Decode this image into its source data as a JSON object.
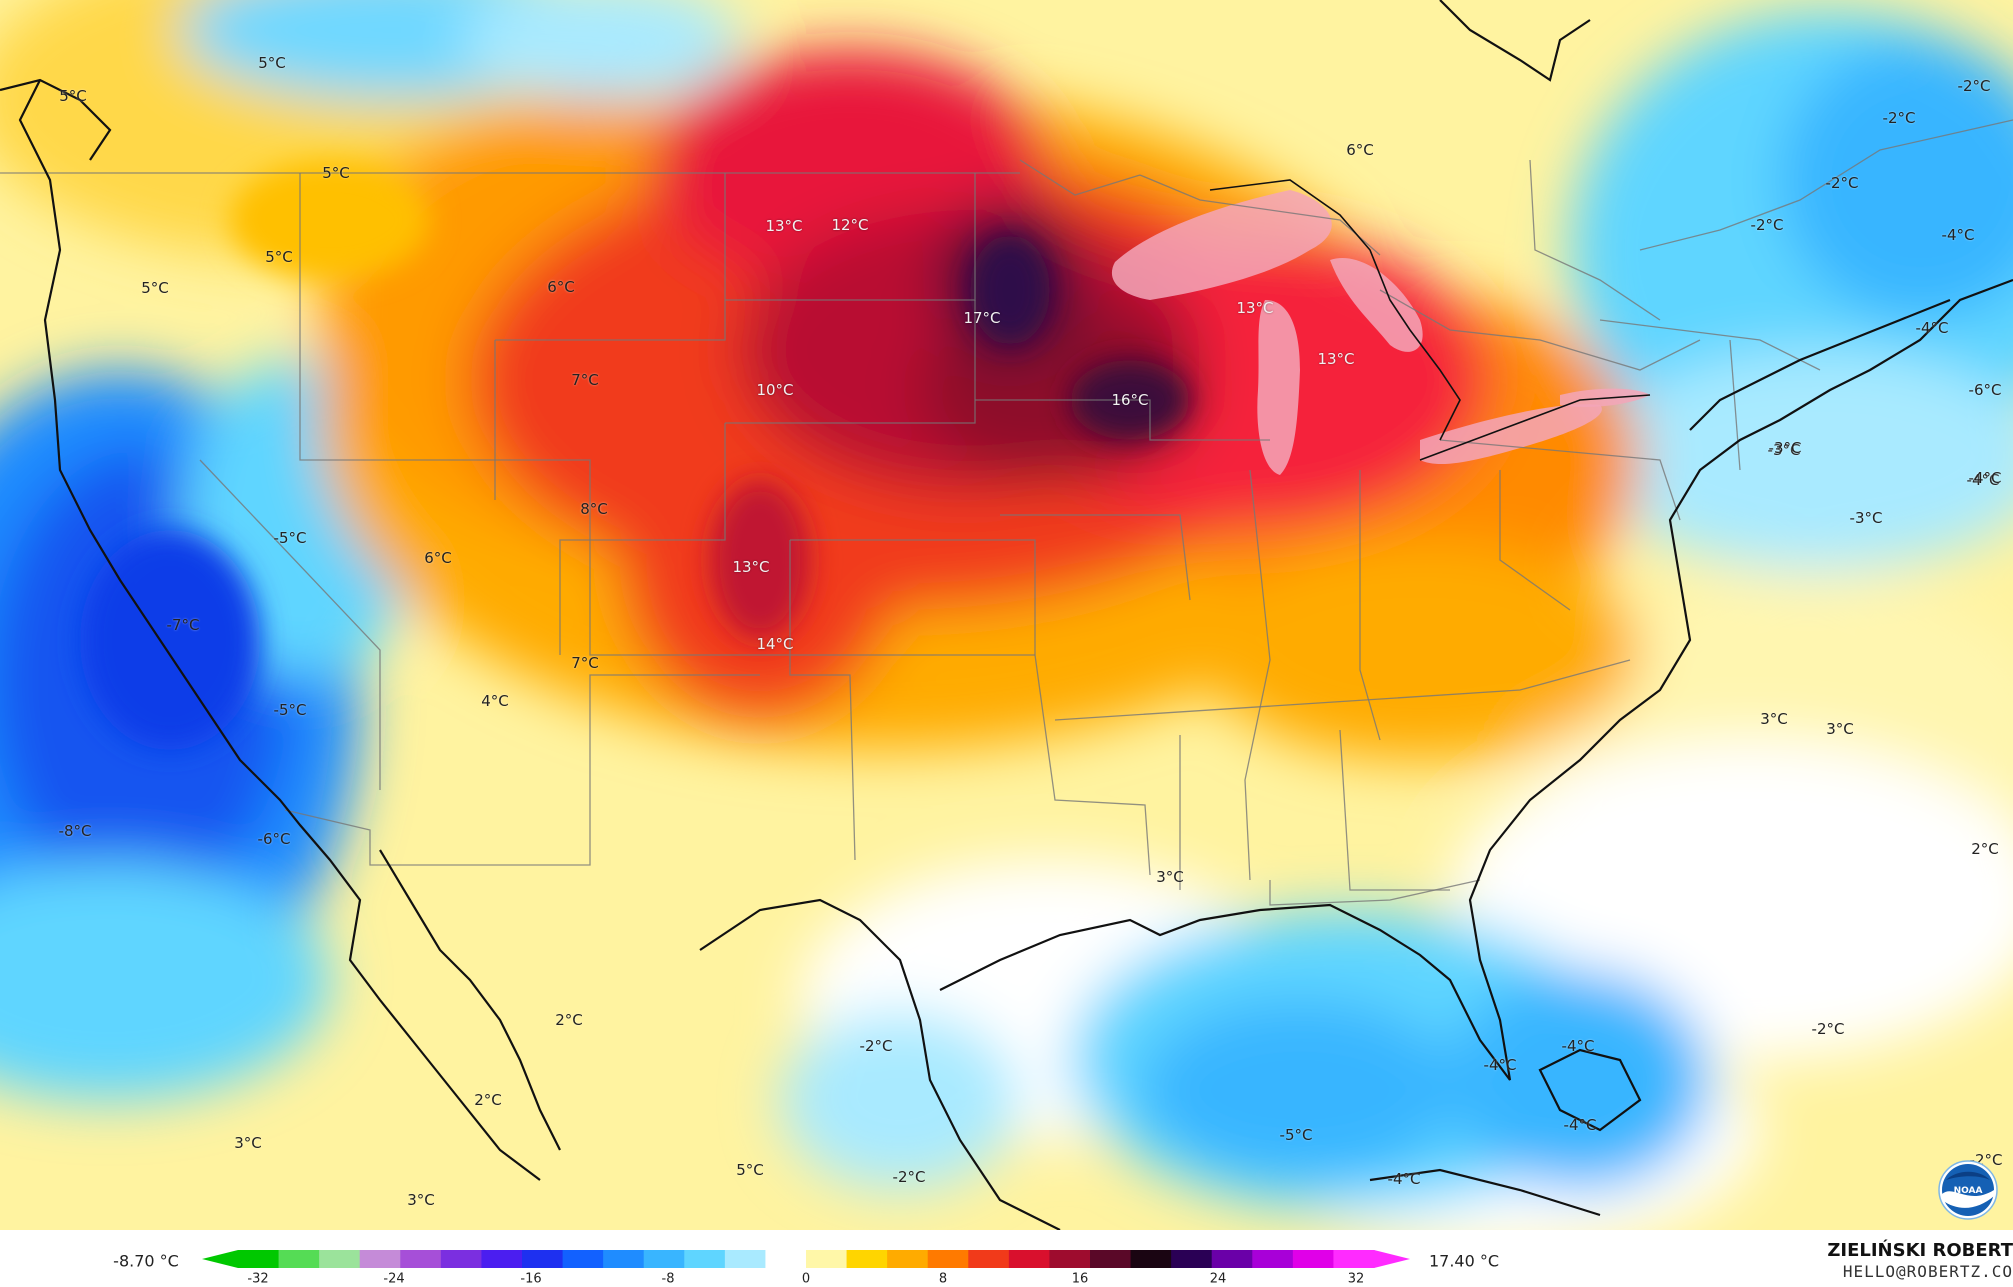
{
  "map": {
    "labels": [
      {
        "text": "5°C"
      },
      {
        "text": "5°C"
      },
      {
        "text": "5°C"
      },
      {
        "text": "5°C"
      },
      {
        "text": "5°C"
      },
      {
        "text": "6°C"
      },
      {
        "text": "13°C"
      },
      {
        "text": "12°C"
      },
      {
        "text": "17°C"
      },
      {
        "text": "10°C"
      },
      {
        "text": "7°C"
      },
      {
        "text": "13°C"
      },
      {
        "text": "13°C"
      },
      {
        "text": "16°C"
      },
      {
        "text": "6°C"
      },
      {
        "text": "8°C"
      },
      {
        "text": "6°C"
      },
      {
        "text": "13°C"
      },
      {
        "text": "14°C"
      },
      {
        "text": "7°C"
      },
      {
        "text": "4°C"
      },
      {
        "text": "-5°C"
      },
      {
        "text": "-7°C"
      },
      {
        "text": "-5°C"
      },
      {
        "text": "-8°C"
      },
      {
        "text": "-6°C"
      },
      {
        "text": "3°C"
      },
      {
        "text": "2°C"
      },
      {
        "text": "2°C"
      },
      {
        "text": "3°C"
      },
      {
        "text": "3°C"
      },
      {
        "text": "5°C"
      },
      {
        "text": "-2°C"
      },
      {
        "text": "-2°C"
      },
      {
        "text": "-5°C"
      },
      {
        "text": "-4°C"
      },
      {
        "text": "-4°C"
      },
      {
        "text": "-4°C"
      },
      {
        "text": "-2°C"
      },
      {
        "text": "-4°C"
      },
      {
        "text": "3°C"
      },
      {
        "text": "3°C"
      },
      {
        "text": "2°C"
      },
      {
        "text": "-3°C"
      },
      {
        "text": "-4°C"
      },
      {
        "text": "-3°C"
      },
      {
        "text": "-2°C"
      },
      {
        "text": "-2°C"
      },
      {
        "text": "-2°C"
      },
      {
        "text": "-4°C"
      },
      {
        "text": "-6°C"
      },
      {
        "text": "-4°C"
      },
      {
        "text": "-3°C"
      },
      {
        "text": "-2°C"
      },
      {
        "text": "-4°C"
      },
      {
        "text": "-2°C"
      }
    ]
  },
  "legend": {
    "min_label": "-8.70 °C",
    "max_label": "17.40 °C",
    "ticks": [
      "-32",
      "-24",
      "-16",
      "-8",
      "0",
      "8",
      "16",
      "24",
      "32"
    ],
    "colors": [
      "#00c800",
      "#55dc55",
      "#9be39b",
      "#c58bd8",
      "#a64fd8",
      "#7b2fe0",
      "#4b1ef0",
      "#1e30f0",
      "#1261ff",
      "#1f8cff",
      "#39b5ff",
      "#5fd5ff",
      "#a9eaff",
      "#ffffff",
      "#fff7a8",
      "#ffd500",
      "#ffab00",
      "#ff7a00",
      "#f13a1a",
      "#d9102d",
      "#9e0c2e",
      "#5a0828",
      "#1a0512",
      "#2a0055",
      "#6a00a8",
      "#a800d8",
      "#e000e8",
      "#ff2bff"
    ]
  },
  "credit": {
    "name": "ZIELIŃSKI ROBERT",
    "email": "HELLO@ROBERTZ.CO"
  },
  "logo": {
    "text": "NOAA"
  }
}
